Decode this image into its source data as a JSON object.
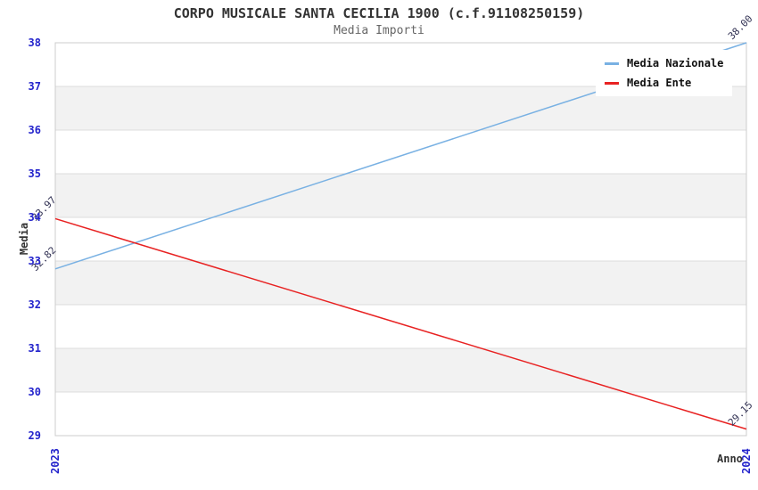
{
  "chart_data": {
    "type": "line",
    "title": "CORPO MUSICALE SANTA CECILIA 1900 (c.f.91108250159)",
    "subtitle": "Media Importi",
    "xlabel": "Anno",
    "ylabel": "Media",
    "categories": [
      "2023",
      "2024"
    ],
    "series": [
      {
        "name": "Media Nazionale",
        "values": [
          32.82,
          38.0
        ],
        "point_labels": [
          "32.82",
          "38.00"
        ],
        "color": "#79b1e3"
      },
      {
        "name": "Media Ente",
        "values": [
          33.97,
          29.15
        ],
        "point_labels": [
          "33.97",
          "29.15"
        ],
        "color": "#e82222"
      }
    ],
    "ylim": [
      29,
      38
    ],
    "yticks": [
      29,
      30,
      31,
      32,
      33,
      34,
      35,
      36,
      37,
      38
    ],
    "grid": true,
    "legend_position": "top-right",
    "colors": {
      "tick_label": "#2424cc",
      "point_label": "#333355",
      "grid_line": "#dcdcdc",
      "plot_border": "#cccccc",
      "band_even": "#ffffff",
      "band_odd": "#f2f2f2",
      "title": "#333333",
      "subtitle": "#666666",
      "axis_label": "#333333",
      "legend_text": "#111111"
    }
  }
}
